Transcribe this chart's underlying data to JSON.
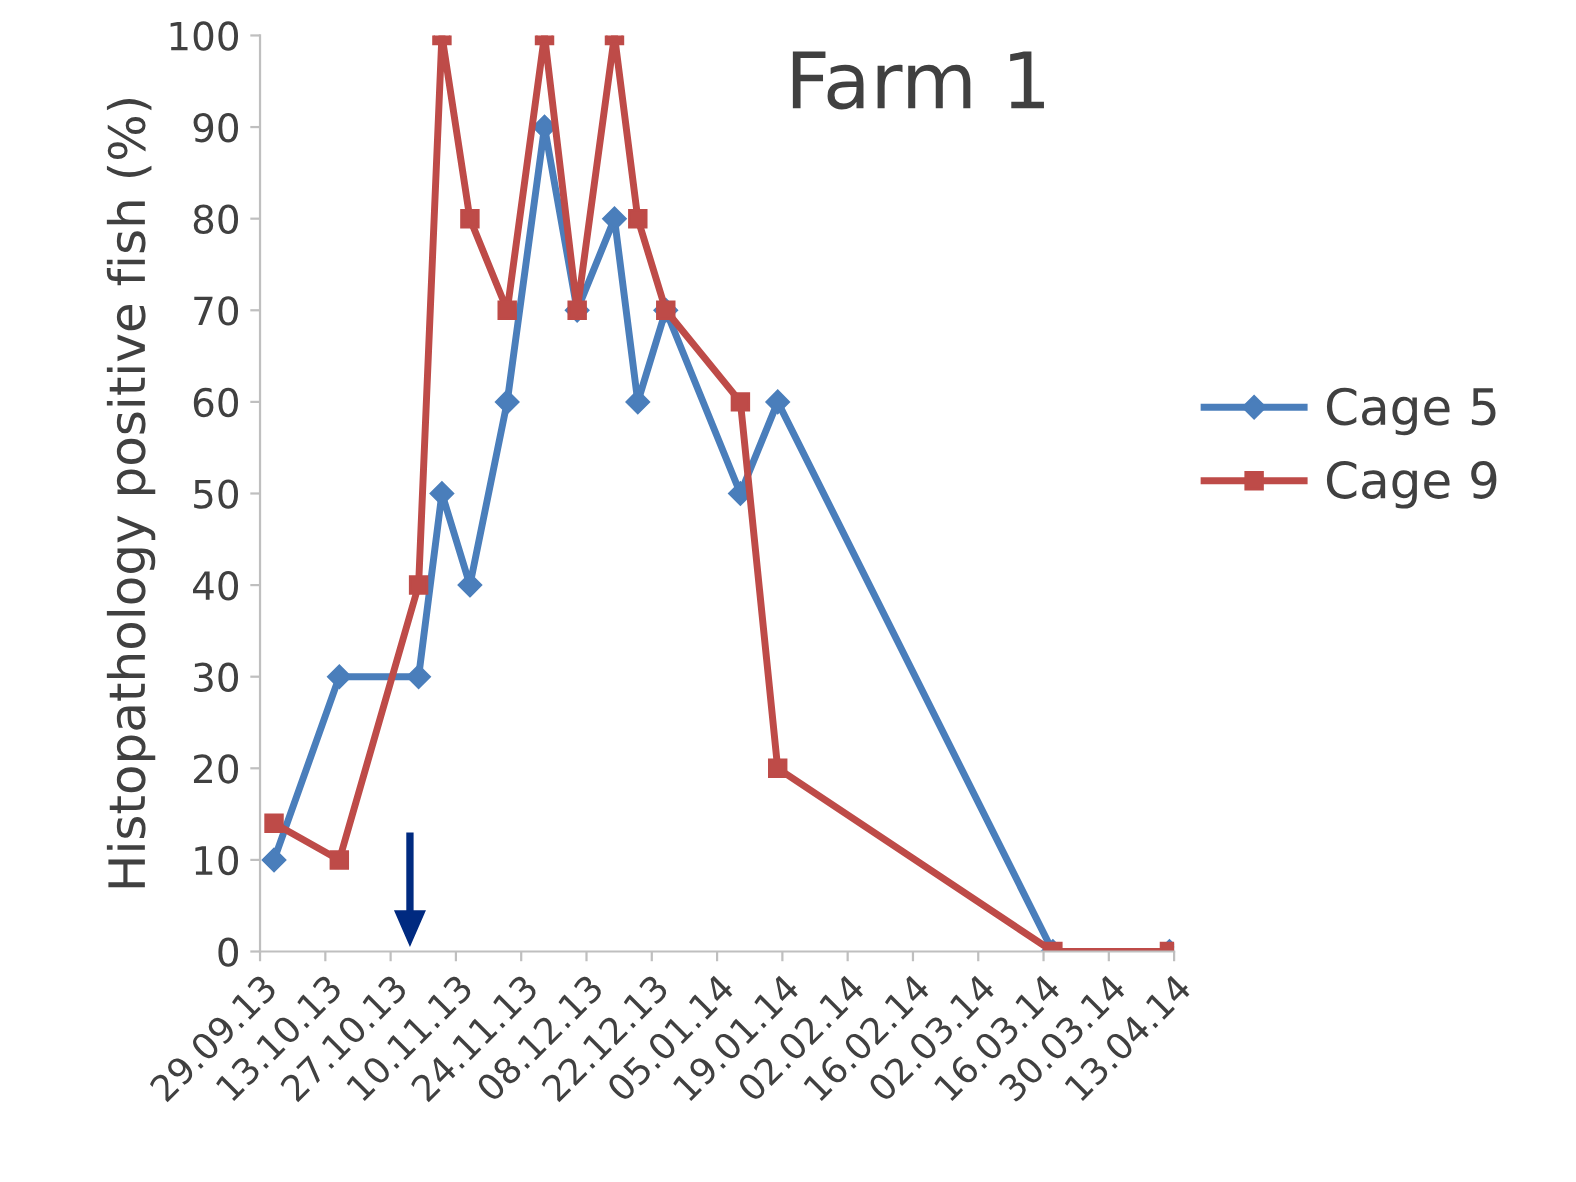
{
  "chart_data": {
    "type": "line",
    "title": "Farm 1",
    "ylabel": "Histopathology positive fish (%)",
    "x": [
      "2013-10-02",
      "2013-10-16",
      "2013-11-02",
      "2013-11-07",
      "2013-11-13",
      "2013-11-21",
      "2013-11-29",
      "2013-12-06",
      "2013-12-14",
      "2013-12-19",
      "2013-12-25",
      "2014-01-10",
      "2014-01-18",
      "2014-03-18",
      "2014-04-12"
    ],
    "series": [
      {
        "name": "Cage 5",
        "color": "#4a7ebb",
        "marker": "diamond",
        "values": [
          10,
          30,
          30,
          50,
          40,
          60,
          90,
          70,
          80,
          60,
          70,
          50,
          60,
          0,
          0
        ]
      },
      {
        "name": "Cage 9",
        "color": "#be4b48",
        "marker": "square",
        "values": [
          14,
          10,
          40,
          100,
          80,
          70,
          100,
          70,
          100,
          80,
          70,
          60,
          20,
          0,
          0
        ]
      }
    ],
    "xlim": [
      "2013-09-29",
      "2014-04-13"
    ],
    "xticks": [
      {
        "value": "2013-09-29",
        "label": "29.09.13"
      },
      {
        "value": "2013-10-13",
        "label": "13.10.13"
      },
      {
        "value": "2013-10-27",
        "label": "27.10.13"
      },
      {
        "value": "2013-11-10",
        "label": "10.11.13"
      },
      {
        "value": "2013-11-24",
        "label": "24.11.13"
      },
      {
        "value": "2013-12-08",
        "label": "08.12.13"
      },
      {
        "value": "2013-12-22",
        "label": "22.12.13"
      },
      {
        "value": "2014-01-05",
        "label": "05.01.14"
      },
      {
        "value": "2014-01-19",
        "label": "19.01.14"
      },
      {
        "value": "2014-02-02",
        "label": "02.02.14"
      },
      {
        "value": "2014-02-16",
        "label": "16.02.14"
      },
      {
        "value": "2014-03-02",
        "label": "02.03.14"
      },
      {
        "value": "2014-03-16",
        "label": "16.03.14"
      },
      {
        "value": "2014-03-30",
        "label": "30.03.14"
      },
      {
        "value": "2014-04-13",
        "label": "13.04.14"
      }
    ],
    "ylim": [
      0,
      100
    ],
    "yticks": [
      0,
      10,
      20,
      30,
      40,
      50,
      60,
      70,
      80,
      90,
      100
    ],
    "grid": false,
    "legend": "right",
    "line_style": "solid"
  }
}
